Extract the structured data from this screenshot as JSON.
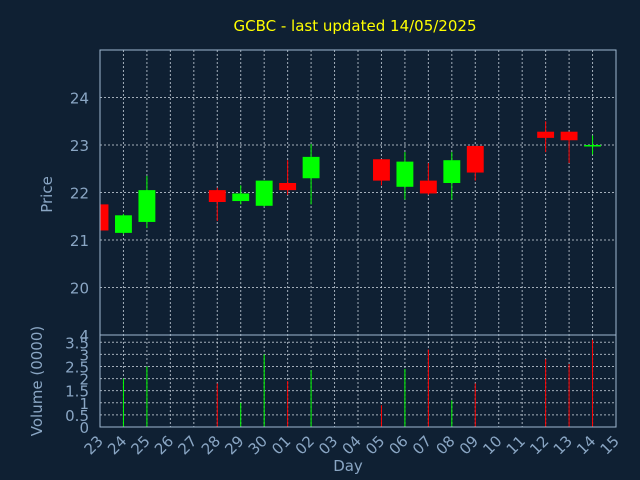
{
  "colors": {
    "background": "#0f2033",
    "plot_border": "#9fb8d0",
    "grid": "#c8d2dc",
    "title": "#ffff00",
    "axis_text": "#8aa6c4",
    "up": "#00ff00",
    "down": "#ff0000"
  },
  "chart_data": [
    {
      "type": "candlestick",
      "title": "GCBC - last updated 14/05/2025",
      "ylabel": "Price",
      "ylim": [
        19.0,
        25.0
      ],
      "yticks": [
        20,
        21,
        22,
        23,
        24
      ],
      "grid": true,
      "categories": [
        "23",
        "24",
        "25",
        "26",
        "27",
        "28",
        "29",
        "30",
        "01",
        "02",
        "03",
        "04",
        "05",
        "06",
        "07",
        "08",
        "09",
        "10",
        "11",
        "12",
        "13",
        "14",
        "15"
      ],
      "ohlc": [
        {
          "day": "23",
          "open": 21.75,
          "high": 21.75,
          "low": 21.2,
          "close": 21.2
        },
        {
          "day": "24",
          "open": 21.15,
          "high": 21.55,
          "low": 21.12,
          "close": 21.52
        },
        {
          "day": "25",
          "open": 21.38,
          "high": 22.35,
          "low": 21.25,
          "close": 22.05
        },
        {
          "day": "28",
          "open": 22.05,
          "high": 22.1,
          "low": 21.4,
          "close": 21.8
        },
        {
          "day": "29",
          "open": 21.82,
          "high": 22.15,
          "low": 21.75,
          "close": 21.98
        },
        {
          "day": "30",
          "open": 21.72,
          "high": 22.25,
          "low": 21.7,
          "close": 22.25
        },
        {
          "day": "01",
          "open": 22.2,
          "high": 22.68,
          "low": 21.95,
          "close": 22.05
        },
        {
          "day": "02",
          "open": 22.3,
          "high": 23.02,
          "low": 21.75,
          "close": 22.75
        },
        {
          "day": "05",
          "open": 22.7,
          "high": 22.7,
          "low": 22.15,
          "close": 22.25
        },
        {
          "day": "06",
          "open": 22.12,
          "high": 22.85,
          "low": 21.85,
          "close": 22.65
        },
        {
          "day": "07",
          "open": 22.25,
          "high": 22.62,
          "low": 21.95,
          "close": 21.98
        },
        {
          "day": "08",
          "open": 22.2,
          "high": 22.85,
          "low": 21.85,
          "close": 22.68
        },
        {
          "day": "09",
          "open": 22.98,
          "high": 22.98,
          "low": 22.25,
          "close": 22.42
        },
        {
          "day": "12",
          "open": 23.28,
          "high": 23.5,
          "low": 22.85,
          "close": 23.15
        },
        {
          "day": "13",
          "open": 23.28,
          "high": 23.28,
          "low": 22.62,
          "close": 23.1
        },
        {
          "day": "14",
          "open": 23.0,
          "high": 23.2,
          "low": 22.8,
          "close": 23.0
        }
      ]
    },
    {
      "type": "bar",
      "xlabel": "Day",
      "ylabel": "Volume (0000)",
      "ylim": [
        0,
        3.8
      ],
      "yticks": [
        "0",
        "0.5",
        "1",
        "1.5",
        "2",
        "2.5",
        "3",
        "3.5"
      ],
      "ytick_values": [
        0,
        0.5,
        1,
        1.5,
        2,
        2.5,
        3,
        3.5
      ],
      "grid": true,
      "categories": [
        "23",
        "24",
        "25",
        "26",
        "27",
        "28",
        "29",
        "30",
        "01",
        "02",
        "03",
        "04",
        "05",
        "06",
        "07",
        "08",
        "09",
        "10",
        "11",
        "12",
        "13",
        "14",
        "15"
      ],
      "volumes": [
        {
          "day": "24",
          "value": 2.0,
          "direction": "up"
        },
        {
          "day": "25",
          "value": 2.5,
          "direction": "up"
        },
        {
          "day": "28",
          "value": 1.8,
          "direction": "down"
        },
        {
          "day": "29",
          "value": 1.0,
          "direction": "up"
        },
        {
          "day": "30",
          "value": 3.0,
          "direction": "up"
        },
        {
          "day": "01",
          "value": 1.9,
          "direction": "down"
        },
        {
          "day": "02",
          "value": 2.35,
          "direction": "up"
        },
        {
          "day": "05",
          "value": 0.9,
          "direction": "down"
        },
        {
          "day": "06",
          "value": 2.4,
          "direction": "up"
        },
        {
          "day": "07",
          "value": 3.2,
          "direction": "down"
        },
        {
          "day": "08",
          "value": 1.1,
          "direction": "up"
        },
        {
          "day": "09",
          "value": 1.8,
          "direction": "down"
        },
        {
          "day": "12",
          "value": 2.8,
          "direction": "down"
        },
        {
          "day": "13",
          "value": 2.6,
          "direction": "down"
        },
        {
          "day": "14",
          "value": 3.6,
          "direction": "down"
        }
      ]
    }
  ]
}
